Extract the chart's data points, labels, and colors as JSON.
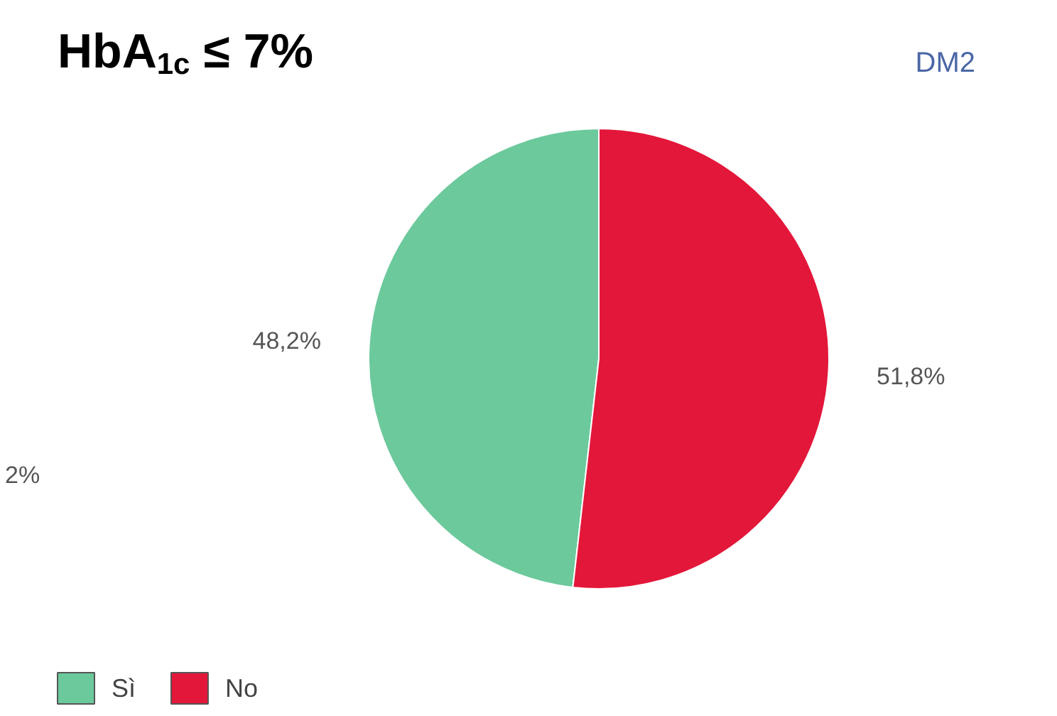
{
  "chart_data": {
    "type": "pie",
    "title": "HbA$_{1c}$ ≤ 7%",
    "subtitle": "DM2",
    "categories": [
      "Sì",
      "No"
    ],
    "values": [
      48.2,
      51.8
    ],
    "colors": [
      "#6cc99c",
      "#e3173a"
    ],
    "value_labels": [
      "48,2%",
      "51,8%"
    ],
    "legend": "bottom left",
    "annotations": [
      "2%"
    ]
  }
}
